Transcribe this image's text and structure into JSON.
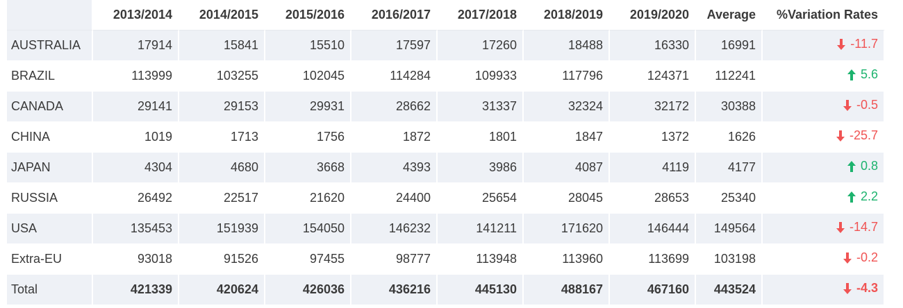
{
  "headers": [
    "",
    "2013/2014",
    "2014/2015",
    "2015/2016",
    "2016/2017",
    "2017/2018",
    "2018/2019",
    "2019/2020",
    "Average",
    "%Variation Rates"
  ],
  "rows": [
    {
      "name": "AUSTRALIA",
      "values": [
        "17914",
        "15841",
        "15510",
        "17597",
        "17260",
        "18488",
        "16330",
        "16991"
      ],
      "variation": "-11.7",
      "direction": "down"
    },
    {
      "name": "BRAZIL",
      "values": [
        "113999",
        "103255",
        "102045",
        "114284",
        "109933",
        "117796",
        "124371",
        "112241"
      ],
      "variation": "5.6",
      "direction": "up"
    },
    {
      "name": "CANADA",
      "values": [
        "29141",
        "29153",
        "29931",
        "28662",
        "31337",
        "32324",
        "32172",
        "30388"
      ],
      "variation": "-0.5",
      "direction": "down"
    },
    {
      "name": "CHINA",
      "values": [
        "1019",
        "1713",
        "1756",
        "1872",
        "1801",
        "1847",
        "1372",
        "1626"
      ],
      "variation": "-25.7",
      "direction": "down"
    },
    {
      "name": "JAPAN",
      "values": [
        "4304",
        "4680",
        "3668",
        "4393",
        "3986",
        "4087",
        "4119",
        "4177"
      ],
      "variation": "0.8",
      "direction": "up"
    },
    {
      "name": "RUSSIA",
      "values": [
        "26492",
        "22517",
        "21620",
        "24400",
        "25654",
        "28045",
        "28653",
        "25340"
      ],
      "variation": "2.2",
      "direction": "up"
    },
    {
      "name": "USA",
      "values": [
        "135453",
        "151939",
        "154050",
        "146232",
        "141211",
        "171620",
        "146444",
        "149564"
      ],
      "variation": "-14.7",
      "direction": "down"
    },
    {
      "name": "Extra-EU",
      "values": [
        "93018",
        "91526",
        "97455",
        "98777",
        "113948",
        "113960",
        "113699",
        "103198"
      ],
      "variation": "-0.2",
      "direction": "down"
    },
    {
      "name": "Total",
      "values": [
        "421339",
        "420624",
        "426036",
        "436216",
        "445130",
        "488167",
        "467160",
        "443524"
      ],
      "variation": "-4.3",
      "direction": "down"
    }
  ],
  "colors": {
    "down": "#f05454",
    "up": "#1db36e",
    "stripe": "#eef1f6"
  }
}
